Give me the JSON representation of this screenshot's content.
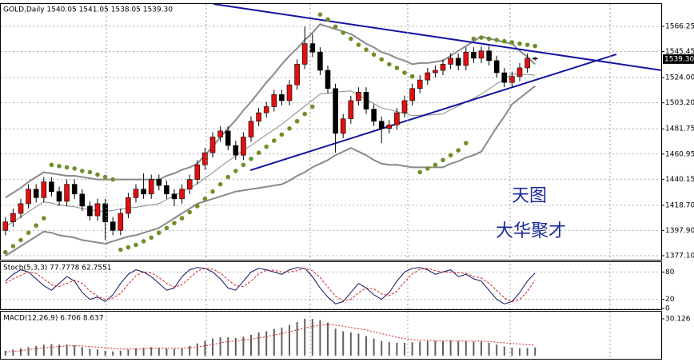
{
  "chart_data": [
    {
      "type": "candlestick",
      "header": "GOLD,Daily  1540.05 1541.05 1538.05 1539.30",
      "open": [
        1398,
        1405,
        1412,
        1420,
        1432,
        1425,
        1438,
        1430,
        1422,
        1436,
        1428,
        1418,
        1410,
        1420,
        1405,
        1398,
        1412,
        1425,
        1432,
        1428,
        1440,
        1435,
        1428,
        1424,
        1432,
        1440,
        1452,
        1462,
        1475,
        1480,
        1468,
        1460,
        1475,
        1488,
        1495,
        1500,
        1510,
        1505,
        1518,
        1535,
        1552,
        1545,
        1530,
        1515,
        1478,
        1490,
        1505,
        1512,
        1498,
        1488,
        1482,
        1485,
        1495,
        1505,
        1515,
        1522,
        1528,
        1530,
        1535,
        1540,
        1534,
        1545,
        1540,
        1546,
        1538,
        1528,
        1520,
        1525,
        1532,
        1540.05
      ],
      "high": [
        1409,
        1416,
        1424,
        1436,
        1436,
        1442,
        1442,
        1434,
        1440,
        1440,
        1432,
        1422,
        1424,
        1424,
        1409,
        1416,
        1429,
        1436,
        1445,
        1444,
        1444,
        1439,
        1432,
        1436,
        1444,
        1456,
        1466,
        1479,
        1484,
        1484,
        1472,
        1479,
        1492,
        1499,
        1504,
        1514,
        1514,
        1522,
        1539,
        1566,
        1560,
        1549,
        1534,
        1519,
        1494,
        1509,
        1516,
        1516,
        1502,
        1492,
        1489,
        1499,
        1509,
        1519,
        1526,
        1532,
        1534,
        1539,
        1544,
        1544,
        1549,
        1549,
        1550,
        1550,
        1542,
        1532,
        1529,
        1536,
        1544,
        1541.05
      ],
      "low": [
        1394,
        1401,
        1408,
        1416,
        1421,
        1421,
        1426,
        1418,
        1418,
        1424,
        1414,
        1406,
        1406,
        1390,
        1394,
        1394,
        1408,
        1421,
        1424,
        1424,
        1431,
        1424,
        1418,
        1420,
        1428,
        1436,
        1448,
        1458,
        1471,
        1464,
        1456,
        1456,
        1471,
        1484,
        1491,
        1496,
        1501,
        1501,
        1514,
        1531,
        1541,
        1526,
        1511,
        1462,
        1474,
        1486,
        1501,
        1494,
        1484,
        1470,
        1478,
        1481,
        1491,
        1501,
        1511,
        1518,
        1524,
        1526,
        1531,
        1530,
        1530,
        1536,
        1536,
        1534,
        1524,
        1516,
        1516,
        1521,
        1528,
        1538.05
      ],
      "close": [
        1405,
        1412,
        1420,
        1432,
        1425,
        1438,
        1430,
        1422,
        1436,
        1428,
        1418,
        1410,
        1420,
        1405,
        1398,
        1412,
        1425,
        1432,
        1428,
        1440,
        1435,
        1428,
        1424,
        1432,
        1440,
        1452,
        1462,
        1475,
        1480,
        1468,
        1460,
        1475,
        1488,
        1495,
        1500,
        1510,
        1505,
        1518,
        1535,
        1552,
        1545,
        1530,
        1515,
        1478,
        1490,
        1505,
        1512,
        1498,
        1488,
        1482,
        1485,
        1495,
        1505,
        1515,
        1522,
        1528,
        1530,
        1535,
        1540,
        1534,
        1545,
        1540,
        1546,
        1538,
        1528,
        1520,
        1525,
        1532,
        1540,
        1539.3
      ],
      "up_color": "#e01010",
      "down_color": "#000000",
      "bands": {
        "color": "#8a8a8a",
        "upper": [
          1425,
          1429,
          1433,
          1438,
          1442,
          1446,
          1445,
          1444,
          1443,
          1443,
          1442,
          1441,
          1440,
          1440,
          1440,
          1440,
          1440,
          1440,
          1440,
          1440,
          1440,
          1443,
          1445,
          1448,
          1450,
          1453,
          1460,
          1467,
          1475,
          1482,
          1489,
          1497,
          1504,
          1512,
          1520,
          1527,
          1535,
          1542,
          1548,
          1555,
          1561,
          1568,
          1566,
          1564,
          1562,
          1560,
          1556,
          1552,
          1549,
          1545,
          1543,
          1540,
          1538,
          1535,
          1536,
          1536,
          1537,
          1538,
          1542,
          1546,
          1550,
          1554,
          1558,
          1556,
          1555,
          1553,
          1552,
          1546,
          1541,
          1535
        ],
        "middle": [
          1401,
          1405,
          1409,
          1413.5,
          1417.5,
          1421.5,
          1420.5,
          1419,
          1418,
          1417.5,
          1416,
          1415,
          1414,
          1413.5,
          1414.5,
          1415.5,
          1416.5,
          1417,
          1418,
          1419,
          1420,
          1423.5,
          1426.5,
          1430,
          1433,
          1436.5,
          1441,
          1445.5,
          1450.5,
          1455,
          1459.5,
          1464,
          1468,
          1472.5,
          1477,
          1481,
          1485.5,
          1490.5,
          1495.5,
          1500.5,
          1505.5,
          1510.5,
          1511,
          1512,
          1512.5,
          1513,
          1509.5,
          1506,
          1502.5,
          1499,
          1497.5,
          1496,
          1494.5,
          1492.5,
          1493,
          1493,
          1493.5,
          1494,
          1497.5,
          1500.5,
          1504,
          1507,
          1510.5,
          1514.5,
          1519,
          1522.5,
          1527,
          1526.5,
          1526.5,
          1526
        ],
        "lower": [
          1377,
          1381,
          1385,
          1389,
          1393,
          1397,
          1396,
          1394,
          1393,
          1392,
          1390,
          1389,
          1388,
          1387,
          1389,
          1391,
          1393,
          1394,
          1396,
          1398,
          1400,
          1404,
          1408,
          1412,
          1416,
          1420,
          1422,
          1424,
          1426,
          1428,
          1430,
          1431,
          1432,
          1433,
          1434,
          1435,
          1436,
          1439,
          1443,
          1446,
          1450,
          1453,
          1456,
          1460,
          1463,
          1466,
          1463,
          1460,
          1456,
          1453,
          1452,
          1452,
          1451,
          1450,
          1450,
          1450,
          1450,
          1450,
          1453,
          1455,
          1458,
          1460,
          1463,
          1473,
          1483,
          1492,
          1502,
          1507,
          1512,
          1517
        ]
      },
      "sar": {
        "color": "#6f8f2a",
        "values": [
          1380,
          1385,
          1390,
          1396,
          1402,
          1408,
          1452,
          1451,
          1450,
          1449,
          1447,
          1446,
          1444,
          1442,
          1440,
          1382,
          1384,
          1386,
          1389,
          1392,
          1396,
          1400,
          1404,
          1408,
          1413,
          1418,
          1424,
          1430,
          1436,
          1442,
          1447,
          1452,
          1457,
          1462,
          1467,
          1472,
          1477,
          1482,
          1488,
          1494,
          1500,
          1576,
          1572,
          1566,
          1561,
          1556,
          1551,
          1547,
          1543,
          1539,
          1535,
          1532,
          1528,
          1525,
          1446,
          1449,
          1452,
          1456,
          1460,
          1464,
          1470,
          1556,
          1557,
          1556,
          1555,
          1554,
          1553,
          1552,
          1551,
          1550
        ]
      },
      "trendlines": [
        {
          "color": "#1414a0",
          "x": [
            27.1,
            85.5
          ],
          "y": [
            1584.7,
            1530
          ]
        },
        {
          "color": "#1414a0",
          "x": [
            31.9,
            79.6
          ],
          "y": [
            1447.6,
            1543.2
          ]
        }
      ],
      "annotations": [
        "天图",
        "大华聚才"
      ],
      "ylim": [
        1373.8,
        1584.7
      ],
      "yticks": [
        1566.25,
        1545.45,
        {
          "value": 1524,
          "label": "1524.00"
        },
        {
          "value": 1503.2,
          "label": "1503.20"
        },
        1481.75,
        1460.95,
        1440.15,
        {
          "value": 1418.7,
          "label": "1418.70"
        },
        {
          "value": 1397.9,
          "label": "1397.90"
        },
        {
          "value": 1377.1,
          "label": "1377.10"
        }
      ],
      "price_label": {
        "value": 1539.3,
        "label": "1539.30"
      },
      "grid": true
    },
    {
      "type": "line",
      "header": "Stoch(5,3,3) 77.7778 62.7551",
      "series": [
        {
          "color": "#101060",
          "dashed": false,
          "values": [
            60,
            75,
            85,
            80,
            65,
            50,
            40,
            55,
            70,
            60,
            35,
            20,
            25,
            15,
            30,
            55,
            75,
            85,
            80,
            70,
            55,
            40,
            45,
            70,
            85,
            90,
            88,
            80,
            65,
            45,
            40,
            60,
            80,
            88,
            85,
            80,
            75,
            85,
            90,
            88,
            70,
            45,
            25,
            10,
            15,
            35,
            55,
            45,
            30,
            20,
            35,
            60,
            80,
            88,
            90,
            85,
            75,
            80,
            85,
            70,
            75,
            65,
            60,
            40,
            20,
            10,
            15,
            35,
            60,
            77.7778
          ]
        },
        {
          "color": "#d02020",
          "dashed": true,
          "values": [
            55,
            65,
            73,
            80,
            77,
            65,
            52,
            48,
            55,
            62,
            55,
            38,
            27,
            20,
            23,
            33,
            53,
            72,
            80,
            78,
            68,
            55,
            47,
            52,
            67,
            82,
            88,
            86,
            78,
            63,
            50,
            48,
            60,
            76,
            84,
            84,
            80,
            80,
            83,
            88,
            83,
            68,
            47,
            27,
            17,
            20,
            35,
            45,
            43,
            32,
            28,
            38,
            58,
            76,
            86,
            88,
            83,
            80,
            80,
            78,
            77,
            70,
            67,
            55,
            40,
            23,
            15,
            20,
            37,
            62.7551
          ]
        }
      ],
      "ylim": [
        0,
        100
      ],
      "yticks": [
        80,
        20,
        0
      ],
      "grid": true
    },
    {
      "type": "bar",
      "header": "MACD(12,26,9) 6.706 8.637",
      "values": [
        4,
        5,
        6,
        7,
        8,
        9,
        9.5,
        9,
        9,
        8.5,
        7,
        5.5,
        5,
        4,
        3.5,
        4,
        5,
        6,
        6.5,
        7,
        6.5,
        6,
        5.5,
        6,
        8,
        10,
        12,
        14,
        15,
        15,
        14.5,
        15.5,
        17,
        19,
        20,
        22,
        23,
        25,
        27.5,
        30.1,
        30,
        29,
        27,
        22,
        20,
        19,
        18,
        16,
        14,
        12,
        11,
        10.5,
        10.5,
        11,
        11.5,
        12,
        12,
        12,
        12.5,
        12,
        12,
        11.5,
        11.5,
        10.5,
        9,
        7.5,
        6.5,
        6,
        6.3,
        6.706
      ],
      "color": "#606060",
      "signal": {
        "color": "#d02020",
        "values": [
          3,
          3.5,
          4,
          5,
          5.5,
          6.5,
          7,
          7.5,
          8,
          8,
          8,
          7.5,
          7,
          6.5,
          6,
          5.5,
          5.5,
          5.5,
          5.5,
          6,
          6,
          6,
          6,
          6,
          6.5,
          7,
          8,
          9,
          10.5,
          11.5,
          12,
          13,
          13.5,
          14.5,
          15.5,
          17,
          18,
          19.5,
          21,
          22.5,
          24,
          25,
          25.5,
          25,
          24,
          23,
          22,
          21,
          19.5,
          18,
          16.5,
          15,
          14,
          13,
          12.5,
          12.5,
          12,
          12,
          12,
          12,
          12,
          12,
          12,
          11.5,
          11,
          10.5,
          10,
          9.5,
          9,
          8.637
        ]
      },
      "ylim": [
        -1.9,
        35.3
      ],
      "yticks": [
        30.126
      ]
    }
  ]
}
